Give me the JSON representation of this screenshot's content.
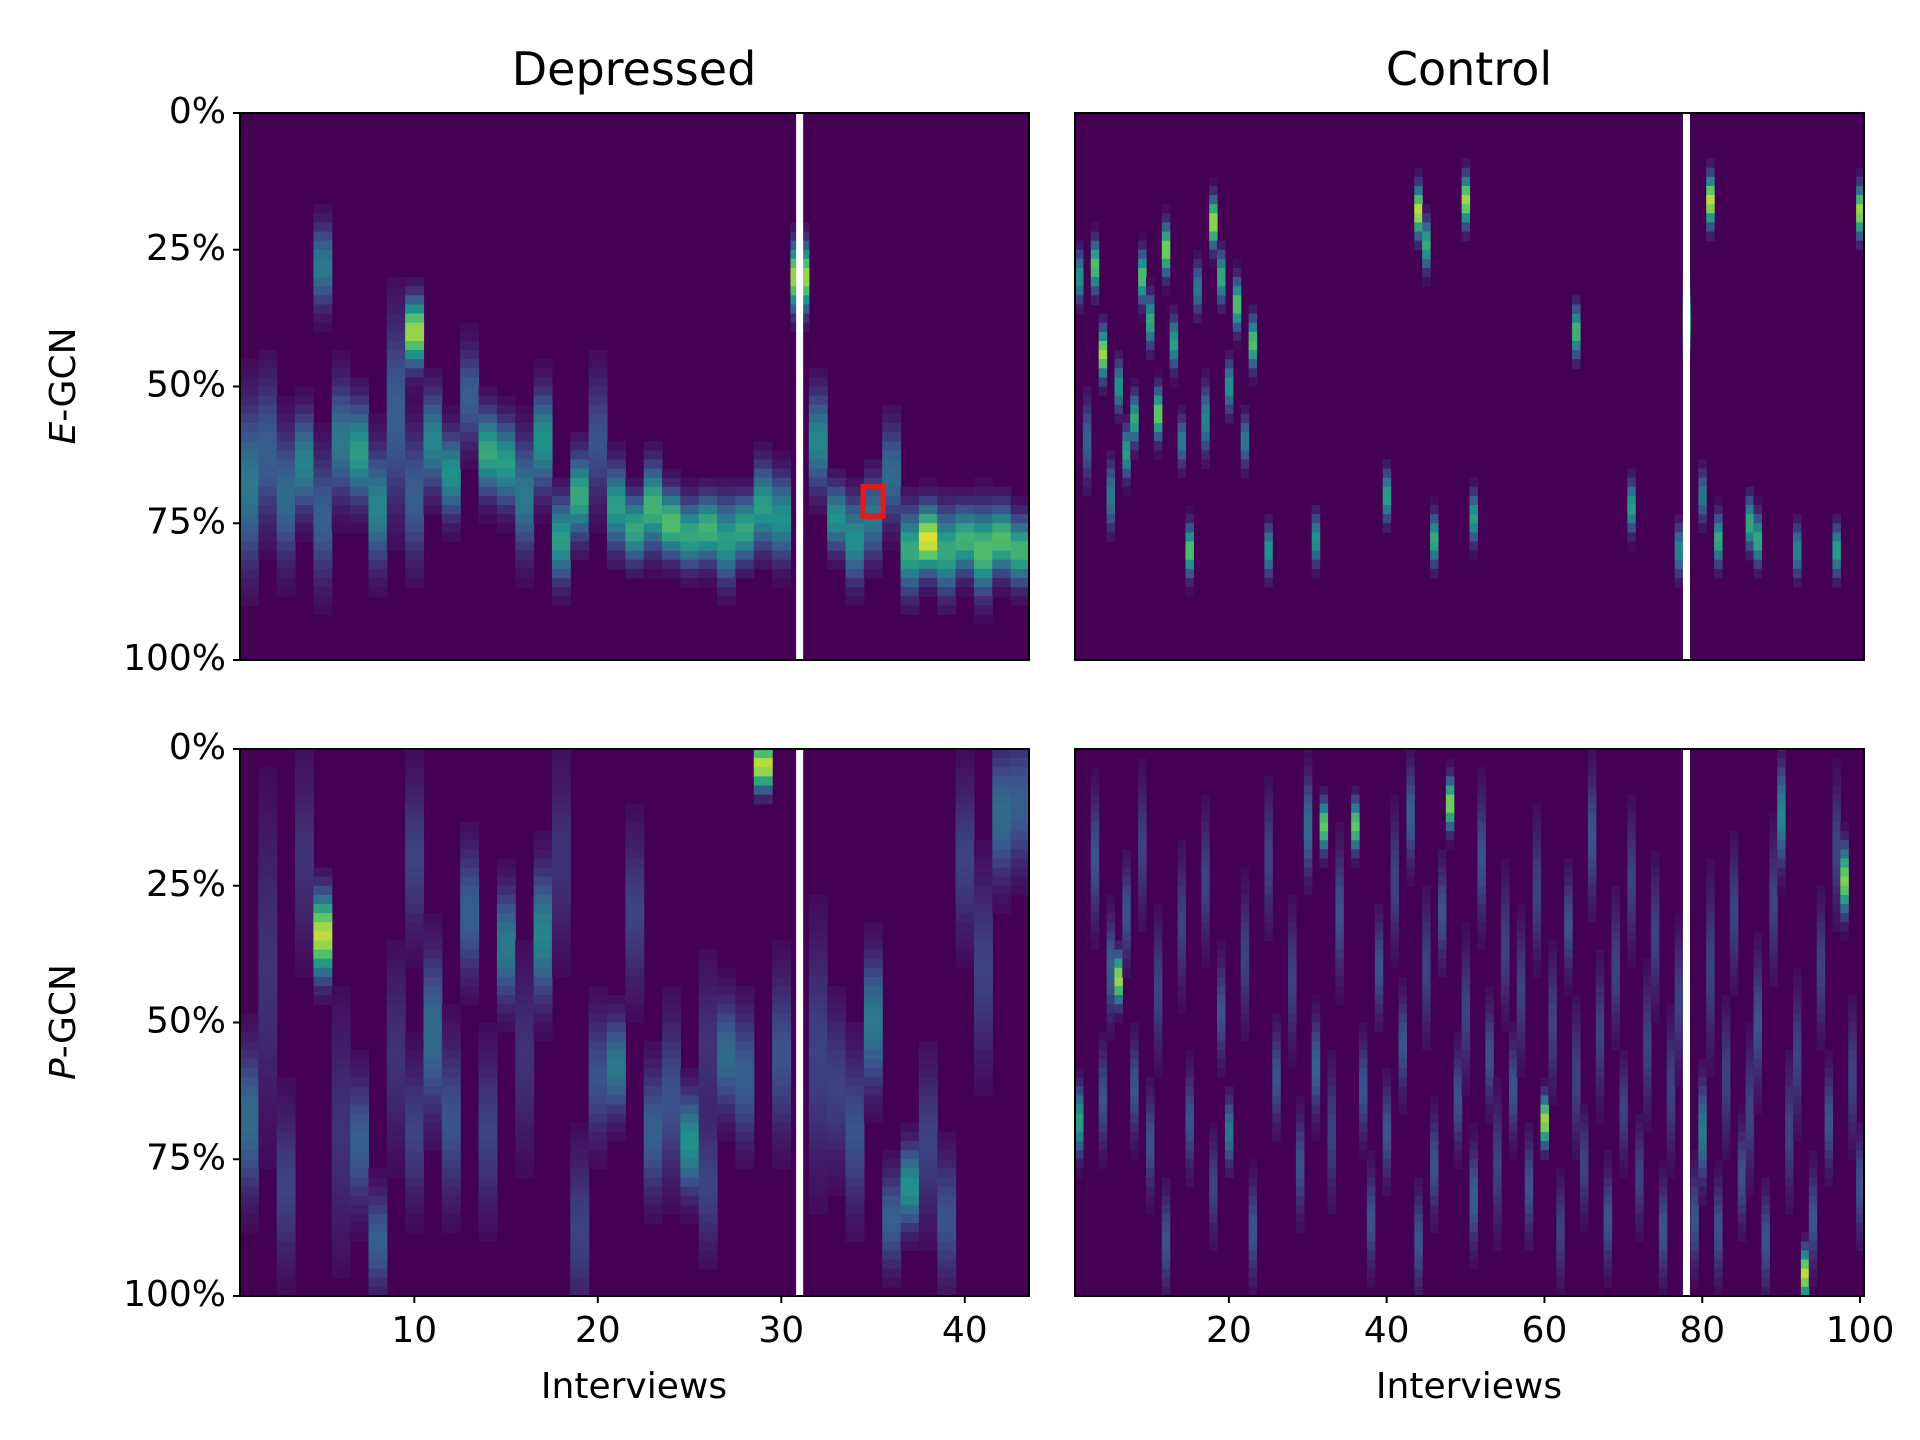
{
  "figure": {
    "col_titles": [
      "Depressed",
      "Control"
    ],
    "row_labels": [
      {
        "italic": "E",
        "rest": "-GCN"
      },
      {
        "italic": "P",
        "rest": "-GCN"
      }
    ]
  },
  "chart_data": [
    {
      "type": "heatmap",
      "id": "e-gcn-depressed",
      "title": "Depressed",
      "row_label": "E-GCN",
      "xlabel": "",
      "ylabel": "E-GCN",
      "xlim": [
        0.5,
        43.5
      ],
      "n_interviews": 43,
      "xticks": [],
      "yticks": [
        "0%",
        "25%",
        "50%",
        "75%",
        "100%"
      ],
      "separator_after_interview": 31,
      "colormap": "viridis",
      "highlight": {
        "interview": 35,
        "position_pct": 71,
        "color": "#e41a1c"
      },
      "peaks": [
        [
          1,
          68,
          0.4,
          10
        ],
        [
          2,
          62,
          0.3,
          9
        ],
        [
          3,
          70,
          0.35,
          8
        ],
        [
          4,
          64,
          0.45,
          6
        ],
        [
          5,
          28,
          0.4,
          5
        ],
        [
          5,
          74,
          0.3,
          8
        ],
        [
          6,
          60,
          0.4,
          7
        ],
        [
          7,
          62,
          0.55,
          6
        ],
        [
          8,
          72,
          0.45,
          7
        ],
        [
          9,
          55,
          0.3,
          12
        ],
        [
          10,
          40,
          0.85,
          4
        ],
        [
          10,
          70,
          0.3,
          8
        ],
        [
          11,
          60,
          0.45,
          6
        ],
        [
          12,
          66,
          0.5,
          5
        ],
        [
          13,
          52,
          0.3,
          6
        ],
        [
          14,
          62,
          0.6,
          5
        ],
        [
          15,
          64,
          0.55,
          5
        ],
        [
          16,
          70,
          0.4,
          7
        ],
        [
          17,
          60,
          0.5,
          6
        ],
        [
          18,
          78,
          0.55,
          5
        ],
        [
          19,
          70,
          0.6,
          5
        ],
        [
          20,
          60,
          0.25,
          8
        ],
        [
          21,
          72,
          0.55,
          5
        ],
        [
          22,
          76,
          0.6,
          4
        ],
        [
          23,
          72,
          0.65,
          5
        ],
        [
          24,
          75,
          0.7,
          4
        ],
        [
          25,
          77,
          0.6,
          4
        ],
        [
          26,
          76,
          0.65,
          4
        ],
        [
          27,
          78,
          0.55,
          5
        ],
        [
          28,
          76,
          0.6,
          4
        ],
        [
          29,
          72,
          0.55,
          5
        ],
        [
          30,
          74,
          0.5,
          5
        ],
        [
          31,
          30,
          0.85,
          4
        ],
        [
          32,
          60,
          0.45,
          6
        ],
        [
          33,
          74,
          0.5,
          4
        ],
        [
          34,
          78,
          0.5,
          5
        ],
        [
          35,
          74,
          0.4,
          5
        ],
        [
          36,
          66,
          0.35,
          6
        ],
        [
          37,
          80,
          0.6,
          5
        ],
        [
          38,
          78,
          0.95,
          4
        ],
        [
          39,
          80,
          0.6,
          5
        ],
        [
          40,
          78,
          0.65,
          4
        ],
        [
          41,
          80,
          0.7,
          5
        ],
        [
          42,
          78,
          0.7,
          4
        ],
        [
          43,
          80,
          0.65,
          4
        ]
      ]
    },
    {
      "type": "heatmap",
      "id": "e-gcn-control",
      "title": "Control",
      "row_label": "",
      "xlabel": "",
      "ylabel": "",
      "xlim": [
        0.5,
        100.5
      ],
      "n_interviews": 100,
      "xticks": [],
      "yticks": [],
      "separator_after_interview": 78,
      "colormap": "viridis",
      "peaks": [
        [
          1,
          30,
          0.5,
          3
        ],
        [
          2,
          60,
          0.3,
          5
        ],
        [
          3,
          28,
          0.7,
          3
        ],
        [
          4,
          44,
          0.85,
          3
        ],
        [
          5,
          70,
          0.4,
          4
        ],
        [
          6,
          50,
          0.5,
          3
        ],
        [
          7,
          62,
          0.55,
          3
        ],
        [
          8,
          56,
          0.6,
          3
        ],
        [
          9,
          30,
          0.7,
          3
        ],
        [
          10,
          38,
          0.6,
          3
        ],
        [
          11,
          55,
          0.75,
          3
        ],
        [
          12,
          25,
          0.8,
          3
        ],
        [
          13,
          42,
          0.55,
          3
        ],
        [
          14,
          60,
          0.4,
          3
        ],
        [
          15,
          80,
          0.7,
          3
        ],
        [
          16,
          32,
          0.4,
          3
        ],
        [
          17,
          56,
          0.45,
          4
        ],
        [
          18,
          20,
          0.85,
          3
        ],
        [
          19,
          30,
          0.6,
          3
        ],
        [
          20,
          50,
          0.5,
          3
        ],
        [
          21,
          35,
          0.7,
          3
        ],
        [
          22,
          60,
          0.4,
          3
        ],
        [
          23,
          42,
          0.7,
          3
        ],
        [
          25,
          80,
          0.5,
          3
        ],
        [
          31,
          78,
          0.5,
          3
        ],
        [
          40,
          70,
          0.55,
          3
        ],
        [
          44,
          18,
          0.9,
          3
        ],
        [
          45,
          24,
          0.6,
          3
        ],
        [
          46,
          78,
          0.6,
          3
        ],
        [
          50,
          16,
          0.85,
          3
        ],
        [
          51,
          74,
          0.55,
          3
        ],
        [
          64,
          40,
          0.65,
          3
        ],
        [
          71,
          72,
          0.55,
          3
        ],
        [
          77,
          80,
          0.45,
          3
        ],
        [
          78,
          38,
          0.6,
          3
        ],
        [
          80,
          70,
          0.4,
          3
        ],
        [
          81,
          16,
          0.9,
          3
        ],
        [
          82,
          78,
          0.6,
          3
        ],
        [
          86,
          75,
          0.6,
          3
        ],
        [
          87,
          78,
          0.6,
          3
        ],
        [
          92,
          80,
          0.45,
          3
        ],
        [
          97,
          80,
          0.55,
          3
        ],
        [
          100,
          18,
          0.85,
          3
        ]
      ]
    },
    {
      "type": "heatmap",
      "id": "p-gcn-depressed",
      "title": "",
      "row_label": "P-GCN",
      "xlabel": "Interviews",
      "ylabel": "P-GCN",
      "xlim": [
        0.5,
        43.5
      ],
      "n_interviews": 43,
      "xticks": [
        "10",
        "20",
        "30",
        "40"
      ],
      "xtick_values": [
        10,
        20,
        30,
        40
      ],
      "yticks": [
        "0%",
        "25%",
        "50%",
        "75%",
        "100%"
      ],
      "separator_after_interview": 31,
      "colormap": "viridis",
      "peaks": [
        [
          1,
          68,
          0.35,
          9
        ],
        [
          2,
          40,
          0.15,
          20
        ],
        [
          3,
          80,
          0.2,
          10
        ],
        [
          4,
          20,
          0.15,
          12
        ],
        [
          5,
          34,
          0.9,
          5
        ],
        [
          6,
          70,
          0.15,
          15
        ],
        [
          7,
          72,
          0.3,
          8
        ],
        [
          8,
          90,
          0.3,
          6
        ],
        [
          9,
          56,
          0.15,
          12
        ],
        [
          10,
          20,
          0.2,
          10
        ],
        [
          10,
          70,
          0.2,
          9
        ],
        [
          11,
          52,
          0.35,
          10
        ],
        [
          12,
          68,
          0.25,
          10
        ],
        [
          13,
          30,
          0.3,
          8
        ],
        [
          14,
          70,
          0.2,
          10
        ],
        [
          15,
          36,
          0.4,
          7
        ],
        [
          16,
          56,
          0.15,
          12
        ],
        [
          17,
          34,
          0.45,
          8
        ],
        [
          18,
          20,
          0.15,
          12
        ],
        [
          19,
          88,
          0.2,
          10
        ],
        [
          20,
          60,
          0.25,
          8
        ],
        [
          21,
          58,
          0.4,
          6
        ],
        [
          22,
          30,
          0.2,
          10
        ],
        [
          23,
          70,
          0.3,
          8
        ],
        [
          24,
          64,
          0.25,
          10
        ],
        [
          25,
          72,
          0.5,
          6
        ],
        [
          26,
          54,
          0.15,
          10
        ],
        [
          26,
          80,
          0.2,
          8
        ],
        [
          27,
          56,
          0.35,
          7
        ],
        [
          28,
          60,
          0.3,
          8
        ],
        [
          29,
          3,
          0.9,
          3
        ],
        [
          30,
          56,
          0.25,
          10
        ],
        [
          32,
          56,
          0.2,
          15
        ],
        [
          33,
          62,
          0.2,
          10
        ],
        [
          34,
          70,
          0.25,
          10
        ],
        [
          35,
          50,
          0.4,
          8
        ],
        [
          36,
          86,
          0.3,
          6
        ],
        [
          37,
          80,
          0.5,
          5
        ],
        [
          38,
          72,
          0.2,
          10
        ],
        [
          39,
          86,
          0.25,
          8
        ],
        [
          40,
          20,
          0.2,
          10
        ],
        [
          41,
          40,
          0.2,
          12
        ],
        [
          42,
          12,
          0.35,
          8
        ],
        [
          43,
          10,
          0.3,
          8
        ]
      ]
    },
    {
      "type": "heatmap",
      "id": "p-gcn-control",
      "title": "",
      "row_label": "",
      "xlabel": "Interviews",
      "ylabel": "",
      "xlim": [
        0.5,
        100.5
      ],
      "n_interviews": 100,
      "xticks": [
        "20",
        "40",
        "60",
        "80",
        "100"
      ],
      "xtick_values": [
        20,
        40,
        60,
        80,
        100
      ],
      "yticks": [],
      "separator_after_interview": 78,
      "colormap": "viridis",
      "peaks": [
        [
          1,
          68,
          0.55,
          4
        ],
        [
          3,
          20,
          0.25,
          8
        ],
        [
          4,
          64,
          0.25,
          6
        ],
        [
          5,
          40,
          0.3,
          6
        ],
        [
          6,
          42,
          0.85,
          3
        ],
        [
          7,
          30,
          0.25,
          6
        ],
        [
          8,
          62,
          0.25,
          6
        ],
        [
          9,
          18,
          0.2,
          8
        ],
        [
          10,
          72,
          0.25,
          6
        ],
        [
          11,
          44,
          0.2,
          8
        ],
        [
          12,
          90,
          0.25,
          6
        ],
        [
          14,
          32,
          0.2,
          8
        ],
        [
          15,
          68,
          0.25,
          6
        ],
        [
          17,
          24,
          0.2,
          8
        ],
        [
          18,
          80,
          0.2,
          6
        ],
        [
          19,
          48,
          0.25,
          6
        ],
        [
          20,
          70,
          0.4,
          4
        ],
        [
          22,
          38,
          0.2,
          8
        ],
        [
          23,
          88,
          0.25,
          6
        ],
        [
          25,
          20,
          0.2,
          8
        ],
        [
          26,
          60,
          0.25,
          6
        ],
        [
          28,
          42,
          0.2,
          8
        ],
        [
          29,
          76,
          0.25,
          6
        ],
        [
          30,
          14,
          0.35,
          6
        ],
        [
          31,
          58,
          0.3,
          6
        ],
        [
          32,
          14,
          0.75,
          3
        ],
        [
          33,
          70,
          0.2,
          8
        ],
        [
          34,
          30,
          0.25,
          8
        ],
        [
          36,
          14,
          0.75,
          3
        ],
        [
          37,
          62,
          0.25,
          6
        ],
        [
          38,
          86,
          0.25,
          6
        ],
        [
          39,
          40,
          0.25,
          6
        ],
        [
          40,
          70,
          0.25,
          6
        ],
        [
          41,
          24,
          0.2,
          8
        ],
        [
          42,
          54,
          0.25,
          6
        ],
        [
          43,
          12,
          0.3,
          6
        ],
        [
          44,
          90,
          0.25,
          6
        ],
        [
          45,
          40,
          0.2,
          8
        ],
        [
          46,
          76,
          0.25,
          6
        ],
        [
          47,
          30,
          0.25,
          6
        ],
        [
          48,
          10,
          0.8,
          3
        ],
        [
          49,
          64,
          0.25,
          6
        ],
        [
          50,
          48,
          0.2,
          8
        ],
        [
          51,
          82,
          0.3,
          6
        ],
        [
          52,
          20,
          0.25,
          8
        ],
        [
          53,
          56,
          0.25,
          6
        ],
        [
          54,
          76,
          0.2,
          8
        ],
        [
          55,
          36,
          0.2,
          8
        ],
        [
          56,
          62,
          0.25,
          6
        ],
        [
          57,
          44,
          0.2,
          8
        ],
        [
          58,
          80,
          0.25,
          6
        ],
        [
          59,
          26,
          0.2,
          8
        ],
        [
          60,
          68,
          0.85,
          3
        ],
        [
          61,
          50,
          0.2,
          8
        ],
        [
          62,
          88,
          0.2,
          6
        ],
        [
          63,
          32,
          0.25,
          6
        ],
        [
          64,
          60,
          0.2,
          8
        ],
        [
          65,
          76,
          0.2,
          6
        ],
        [
          66,
          16,
          0.25,
          8
        ],
        [
          67,
          52,
          0.2,
          8
        ],
        [
          68,
          86,
          0.25,
          6
        ],
        [
          69,
          40,
          0.2,
          8
        ],
        [
          70,
          66,
          0.2,
          6
        ],
        [
          71,
          24,
          0.2,
          8
        ],
        [
          72,
          78,
          0.2,
          6
        ],
        [
          73,
          54,
          0.2,
          8
        ],
        [
          74,
          34,
          0.2,
          8
        ],
        [
          75,
          88,
          0.25,
          6
        ],
        [
          76,
          62,
          0.2,
          8
        ],
        [
          77,
          46,
          0.2,
          8
        ],
        [
          79,
          86,
          0.25,
          6
        ],
        [
          80,
          70,
          0.4,
          6
        ],
        [
          81,
          40,
          0.2,
          10
        ],
        [
          82,
          88,
          0.25,
          6
        ],
        [
          83,
          60,
          0.2,
          8
        ],
        [
          84,
          30,
          0.2,
          8
        ],
        [
          85,
          78,
          0.25,
          6
        ],
        [
          86,
          66,
          0.2,
          8
        ],
        [
          87,
          50,
          0.25,
          8
        ],
        [
          88,
          90,
          0.25,
          6
        ],
        [
          89,
          28,
          0.2,
          8
        ],
        [
          90,
          12,
          0.45,
          6
        ],
        [
          91,
          70,
          0.2,
          8
        ],
        [
          92,
          56,
          0.2,
          8
        ],
        [
          93,
          96,
          0.9,
          3
        ],
        [
          94,
          86,
          0.25,
          6
        ],
        [
          95,
          40,
          0.2,
          8
        ],
        [
          96,
          68,
          0.25,
          6
        ],
        [
          97,
          18,
          0.2,
          8
        ],
        [
          98,
          24,
          0.8,
          4
        ],
        [
          99,
          60,
          0.2,
          8
        ],
        [
          100,
          80,
          0.25,
          6
        ]
      ]
    }
  ]
}
